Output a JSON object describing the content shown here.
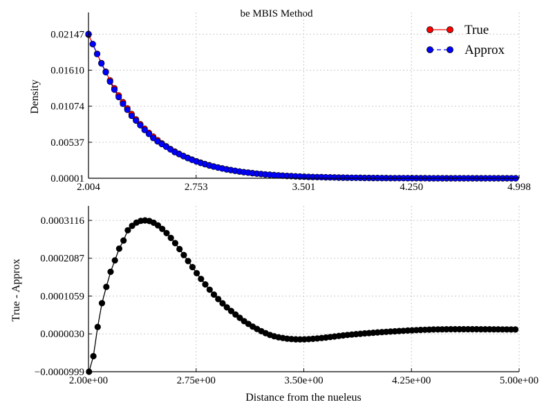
{
  "chart_data": [
    {
      "type": "line",
      "title": "be  MBIS Method",
      "xlabel": "",
      "ylabel": "Density",
      "xlim": [
        2.004,
        4.998
      ],
      "ylim": [
        1e-05,
        0.0247
      ],
      "x_ticks": [
        "2.004",
        "2.753",
        "3.501",
        "4.250",
        "4.998"
      ],
      "y_ticks": [
        "0.00001",
        "0.00537",
        "0.01074",
        "0.01610",
        "0.02147"
      ],
      "grid": true,
      "legend": "top-right",
      "x": [
        2.004,
        2.034,
        2.064,
        2.094,
        2.124,
        2.154,
        2.184,
        2.214,
        2.244,
        2.274,
        2.304,
        2.334,
        2.364,
        2.394,
        2.424,
        2.454,
        2.484,
        2.514,
        2.544,
        2.574,
        2.604,
        2.634,
        2.664,
        2.694,
        2.724,
        2.754,
        2.784,
        2.814,
        2.844,
        2.874,
        2.904,
        2.934,
        2.964,
        2.994,
        3.024,
        3.054,
        3.084,
        3.114,
        3.144,
        3.174,
        3.204,
        3.234,
        3.264,
        3.294,
        3.324,
        3.354,
        3.384,
        3.414,
        3.444,
        3.474,
        3.504,
        3.534,
        3.564,
        3.594,
        3.624,
        3.654,
        3.684,
        3.714,
        3.744,
        3.774,
        3.804,
        3.834,
        3.864,
        3.894,
        3.924,
        3.954,
        3.984,
        4.014,
        4.044,
        4.074,
        4.104,
        4.134,
        4.164,
        4.194,
        4.224,
        4.254,
        4.284,
        4.314,
        4.344,
        4.374,
        4.404,
        4.434,
        4.464,
        4.494,
        4.524,
        4.554,
        4.584,
        4.614,
        4.644,
        4.674,
        4.704,
        4.734,
        4.764,
        4.794,
        4.824,
        4.854,
        4.884,
        4.914,
        4.944,
        4.974
      ],
      "series": [
        {
          "name": "True",
          "color": "#ff0000",
          "marker": "circle",
          "linestyle": "solid",
          "values": [
            0.0214,
            0.01998,
            0.01855,
            0.01716,
            0.01588,
            0.01458,
            0.01341,
            0.01234,
            0.01134,
            0.01042,
            0.00958,
            0.00879,
            0.00807,
            0.0074,
            0.00678,
            0.00621,
            0.00569,
            0.00521,
            0.00477,
            0.00436,
            0.00399,
            0.00365,
            0.00334,
            0.00305,
            0.00279,
            0.00255,
            0.00233,
            0.00213,
            0.00195,
            0.00178,
            0.00162,
            0.00148,
            0.00135,
            0.00123,
            0.00112,
            0.00102,
            0.00093,
            0.00085,
            0.00077,
            0.0007,
            0.00064,
            0.00058,
            0.00053,
            0.00048,
            0.00044,
            0.0004,
            0.00036,
            0.00033,
            0.0003,
            0.00027,
            0.00025,
            0.00022,
            0.0002,
            0.00018,
            0.00017,
            0.00015,
            0.00014,
            0.00013,
            0.00011,
            0.0001,
            9e-05,
            8e-05,
            8e-05,
            7e-05,
            6e-05,
            6e-05,
            5e-05,
            5e-05,
            4e-05,
            4e-05,
            3e-05,
            3e-05,
            3e-05,
            3e-05,
            2e-05,
            2e-05,
            2e-05,
            2e-05,
            2e-05,
            1e-05,
            1e-05,
            1e-05,
            1e-05,
            1e-05,
            1e-05,
            1e-05,
            1e-05,
            1e-05,
            1e-05,
            1e-05,
            1e-05,
            1e-05,
            1e-05,
            1e-05,
            1e-05,
            1e-05,
            1e-05,
            1e-05,
            1e-05,
            1e-05
          ]
        },
        {
          "name": "Approx",
          "color": "#0000ff",
          "marker": "circle",
          "linestyle": "dashed",
          "values": [
            0.0215,
            0.02,
            0.0185,
            0.0171,
            0.0158,
            0.0144,
            0.0132,
            0.0121,
            0.0111,
            0.0102,
            0.0093,
            0.0086,
            0.0079,
            0.0072,
            0.0066,
            0.006,
            0.0055,
            0.0051,
            0.0047,
            0.0043,
            0.0039,
            0.0036,
            0.0033,
            0.003,
            0.00275,
            0.0025,
            0.00228,
            0.0021,
            0.0019,
            0.00175,
            0.0016,
            0.00146,
            0.00133,
            0.00122,
            0.00111,
            0.00101,
            0.00092,
            0.00084,
            0.00077,
            0.0007,
            0.00064,
            0.00058,
            0.00053,
            0.00048,
            0.00044,
            0.0004,
            0.00036,
            0.00033,
            0.0003,
            0.00027,
            0.00025,
            0.00022,
            0.0002,
            0.00018,
            0.00017,
            0.00015,
            0.00014,
            0.00013,
            0.00011,
            0.0001,
            9e-05,
            8e-05,
            8e-05,
            7e-05,
            6e-05,
            6e-05,
            5e-05,
            5e-05,
            4e-05,
            4e-05,
            3e-05,
            3e-05,
            3e-05,
            3e-05,
            2e-05,
            2e-05,
            2e-05,
            2e-05,
            2e-05,
            1e-05,
            1e-05,
            1e-05,
            1e-05,
            1e-05,
            1e-05,
            1e-05,
            1e-05,
            1e-05,
            1e-05,
            1e-05,
            1e-05,
            1e-05,
            1e-05,
            1e-05,
            1e-05,
            1e-05,
            1e-05,
            1e-05,
            1e-05,
            1e-05
          ]
        }
      ]
    },
    {
      "type": "line",
      "title": "",
      "xlabel": "Distance from the nueleus",
      "ylabel": "True - Approx",
      "xlim": [
        2.0,
        5.0
      ],
      "ylim": [
        -9.99e-05,
        0.000351
      ],
      "x_ticks": [
        "2.00e+00",
        "2.75e+00",
        "3.50e+00",
        "4.25e+00",
        "5.00e+00"
      ],
      "y_ticks": [
        "−0.0000999",
        "0.0000030",
        "0.0001059",
        "0.0002087",
        "0.0003116"
      ],
      "grid": true,
      "x": [
        2.004,
        2.034,
        2.064,
        2.094,
        2.124,
        2.154,
        2.184,
        2.214,
        2.244,
        2.274,
        2.304,
        2.334,
        2.364,
        2.394,
        2.424,
        2.454,
        2.484,
        2.514,
        2.544,
        2.574,
        2.604,
        2.634,
        2.664,
        2.694,
        2.724,
        2.754,
        2.784,
        2.814,
        2.844,
        2.874,
        2.904,
        2.934,
        2.964,
        2.994,
        3.024,
        3.054,
        3.084,
        3.114,
        3.144,
        3.174,
        3.204,
        3.234,
        3.264,
        3.294,
        3.324,
        3.354,
        3.384,
        3.414,
        3.444,
        3.474,
        3.504,
        3.534,
        3.564,
        3.594,
        3.624,
        3.654,
        3.684,
        3.714,
        3.744,
        3.774,
        3.804,
        3.834,
        3.864,
        3.894,
        3.924,
        3.954,
        3.984,
        4.014,
        4.044,
        4.074,
        4.104,
        4.134,
        4.164,
        4.194,
        4.224,
        4.254,
        4.284,
        4.314,
        4.344,
        4.374,
        4.404,
        4.434,
        4.464,
        4.494,
        4.524,
        4.554,
        4.584,
        4.614,
        4.644,
        4.674,
        4.704,
        4.734,
        4.764,
        4.794,
        4.824,
        4.854,
        4.884,
        4.914,
        4.944,
        4.974
      ],
      "series": [
        {
          "name": "",
          "color": "#000000",
          "marker": "circle",
          "linestyle": "solid",
          "values": [
            -9.99e-05,
            -5.76e-05,
            2.18e-05,
            8.65e-05,
            0.0001308,
            0.0001717,
            0.0002028,
            0.0002347,
            0.0002568,
            0.0002846,
            0.0002967,
            0.0003055,
            0.0003102,
            0.0003116,
            0.0003098,
            0.0003051,
            0.000298,
            0.0002884,
            0.0002769,
            0.0002638,
            0.0002498,
            0.0002336,
            0.0002174,
            0.0002008,
            0.0001845,
            0.0001681,
            0.0001524,
            0.0001375,
            0.0001232,
            0.0001098,
            9.75e-05,
            8.61e-05,
            7.51e-05,
            6.52e-05,
            5.57e-05,
            4.67e-05,
            3.77e-05,
            3.01e-05,
            2.27e-05,
            1.64e-05,
            1.04e-05,
            4.9e-06,
            1e-07,
            -3.6e-06,
            -6.3e-06,
            -8.3e-06,
            -1.01e-05,
            -1.11e-05,
            -1.17e-05,
            -1.19e-05,
            -1.17e-05,
            -1.12e-05,
            -1.05e-05,
            -9.5e-06,
            -8.3e-06,
            -6.9e-06,
            -5.5e-06,
            -4.1e-06,
            -2.6e-06,
            -1.2e-06,
            1e-07,
            1.2e-06,
            2.3e-06,
            3.3e-06,
            4.3e-06,
            5.2e-06,
            6.1e-06,
            7e-06,
            7.8e-06,
            8.5e-06,
            9.3e-06,
            1e-05,
            1.07e-05,
            1.14e-05,
            1.2e-05,
            1.26e-05,
            1.32e-05,
            1.37e-05,
            1.41e-05,
            1.45e-05,
            1.48e-05,
            1.51e-05,
            1.53e-05,
            1.55e-05,
            1.56e-05,
            1.57e-05,
            1.57e-05,
            1.57e-05,
            1.57e-05,
            1.56e-05,
            1.56e-05,
            1.55e-05,
            1.55e-05,
            1.54e-05,
            1.53e-05,
            1.52e-05,
            1.51e-05,
            1.5e-05,
            1.49e-05,
            1.48e-05
          ]
        }
      ]
    }
  ]
}
